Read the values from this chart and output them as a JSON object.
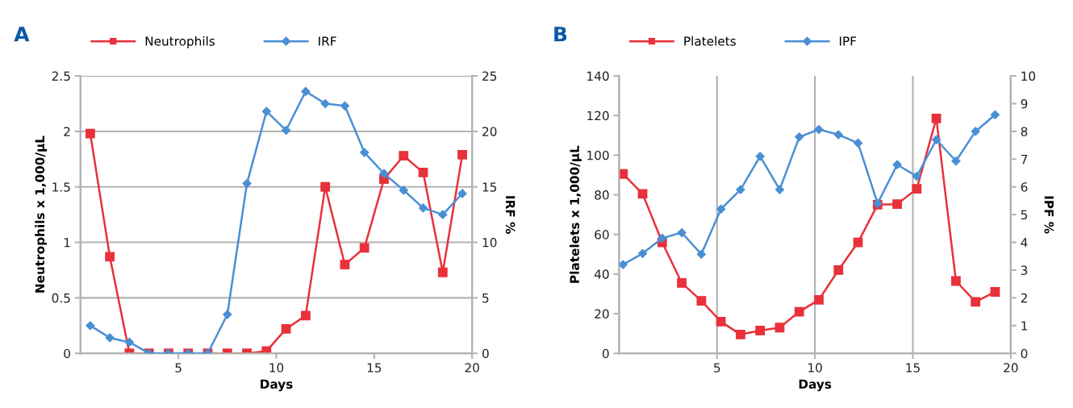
{
  "chart_data": [
    {
      "type": "line",
      "title": "A",
      "xlabel": "Days",
      "ylabel": "Neutrophils x 1,000/μL",
      "y2label": "IRF %",
      "xlim": [
        0,
        20
      ],
      "xticks": [
        5,
        10,
        15,
        20
      ],
      "ylim": [
        0,
        2.5
      ],
      "yticks": [
        0,
        0.5,
        1,
        1.5,
        2,
        2.5
      ],
      "y2lim": [
        0,
        25
      ],
      "y2ticks": [
        0,
        5,
        10,
        15,
        20,
        25
      ],
      "grid": "y",
      "legend": "top",
      "series": [
        {
          "name": "Neutrophils",
          "color": "#e8313a",
          "marker": "square",
          "x": [
            0.5,
            1.5,
            2.5,
            3.5,
            4.5,
            5.5,
            6.5,
            7.5,
            8.5,
            9.5,
            10.5,
            11.5,
            12.5,
            13.5,
            14.5,
            15.5,
            16.5,
            17.5,
            18.5,
            19.5
          ],
          "values": [
            1.98,
            0.87,
            0,
            0,
            0,
            0,
            0,
            0,
            0,
            0.02,
            0.22,
            0.34,
            1.5,
            0.8,
            0.95,
            1.57,
            1.78,
            1.63,
            0.73,
            1.79
          ]
        },
        {
          "name": "IRF",
          "color": "#4a8fd4",
          "marker": "diamond",
          "axis": "y2",
          "x": [
            0.5,
            1.5,
            2.5,
            3.5,
            4.5,
            5.5,
            6.5,
            7.5,
            8.5,
            9.5,
            10.5,
            11.5,
            12.5,
            13.5,
            14.5,
            15.5,
            16.5,
            17.5,
            18.5,
            19.5
          ],
          "values": [
            2.5,
            1.4,
            1.0,
            0,
            0,
            0,
            0,
            3.5,
            15.3,
            21.8,
            20.1,
            23.6,
            22.5,
            22.3,
            18.1,
            16.2,
            14.7,
            13.1,
            12.5,
            14.4
          ]
        }
      ]
    },
    {
      "type": "line",
      "title": "B",
      "xlabel": "Days",
      "ylabel": "Platelets x 1,000/μL",
      "y2label": "IPF %",
      "xlim": [
        0,
        20
      ],
      "xticks": [
        5,
        10,
        15,
        20
      ],
      "ylim": [
        0,
        140
      ],
      "yticks": [
        0,
        20,
        40,
        60,
        80,
        100,
        120,
        140
      ],
      "y2lim": [
        0,
        10
      ],
      "y2ticks": [
        0,
        1,
        2,
        3,
        4,
        5,
        6,
        7,
        8,
        9,
        10
      ],
      "grid": "x",
      "legend": "top",
      "series": [
        {
          "name": "Platelets",
          "color": "#e8313a",
          "marker": "square",
          "x": [
            0.2,
            1.2,
            2.2,
            3.2,
            4.2,
            5.2,
            6.2,
            7.2,
            8.2,
            9.2,
            10.2,
            11.2,
            12.2,
            13.2,
            14.2,
            15.2,
            16.2,
            17.2,
            18.2,
            19.2
          ],
          "values": [
            90.5,
            80.5,
            56,
            35.5,
            26.5,
            16,
            9.5,
            11.5,
            13,
            21,
            27,
            42,
            56,
            75,
            75.3,
            83,
            118.5,
            36.5,
            26,
            31
          ]
        },
        {
          "name": "IPF",
          "color": "#4a8fd4",
          "marker": "diamond",
          "axis": "y2",
          "x": [
            0.2,
            1.2,
            2.2,
            3.2,
            4.2,
            5.2,
            6.2,
            7.2,
            8.2,
            9.2,
            10.2,
            11.2,
            12.2,
            13.2,
            14.2,
            15.2,
            16.2,
            17.2,
            18.2,
            19.2
          ],
          "values": [
            3.2,
            3.6,
            4.15,
            4.35,
            3.57,
            5.2,
            5.9,
            7.1,
            5.9,
            7.8,
            8.07,
            7.88,
            7.58,
            5.4,
            6.8,
            6.38,
            7.7,
            6.93,
            8.0,
            8.6
          ]
        }
      ]
    }
  ]
}
